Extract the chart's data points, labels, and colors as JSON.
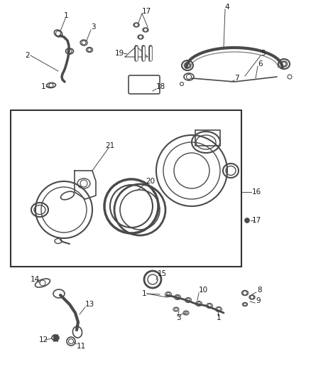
{
  "bg_color": "#ffffff",
  "line_color": "#4a4a4a",
  "text_color": "#1a1a1a",
  "fig_width": 4.38,
  "fig_height": 5.33,
  "dpi": 100,
  "font_size": 7.5
}
